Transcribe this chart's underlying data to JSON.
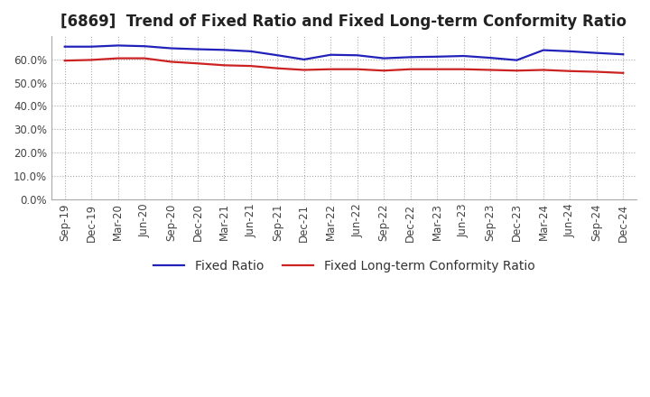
{
  "title": "[6869]  Trend of Fixed Ratio and Fixed Long-term Conformity Ratio",
  "x_labels": [
    "Sep-19",
    "Dec-19",
    "Mar-20",
    "Jun-20",
    "Sep-20",
    "Dec-20",
    "Mar-21",
    "Jun-21",
    "Sep-21",
    "Dec-21",
    "Mar-22",
    "Jun-22",
    "Sep-22",
    "Dec-22",
    "Mar-23",
    "Jun-23",
    "Sep-23",
    "Dec-23",
    "Mar-24",
    "Jun-24",
    "Sep-24",
    "Dec-24"
  ],
  "fixed_ratio": [
    0.655,
    0.655,
    0.66,
    0.657,
    0.648,
    0.644,
    0.641,
    0.635,
    0.618,
    0.6,
    0.62,
    0.618,
    0.605,
    0.61,
    0.612,
    0.615,
    0.607,
    0.597,
    0.64,
    0.635,
    0.628,
    0.622
  ],
  "fixed_lt_ratio": [
    0.595,
    0.598,
    0.605,
    0.605,
    0.59,
    0.583,
    0.575,
    0.572,
    0.562,
    0.555,
    0.558,
    0.558,
    0.552,
    0.558,
    0.558,
    0.558,
    0.555,
    0.552,
    0.555,
    0.55,
    0.547,
    0.542
  ],
  "fixed_ratio_color": "#2222bb",
  "fixed_lt_ratio_color": "#cc2222",
  "ylim": [
    0.0,
    0.7
  ],
  "yticks": [
    0.0,
    0.1,
    0.2,
    0.3,
    0.4,
    0.5,
    0.6
  ],
  "legend_fixed": "Fixed Ratio",
  "legend_fixed_lt": "Fixed Long-term Conformity Ratio",
  "grid_color": "#aaaaaa",
  "background_color": "#ffffff",
  "title_fontsize": 12,
  "tick_fontsize": 8.5,
  "legend_fontsize": 10
}
